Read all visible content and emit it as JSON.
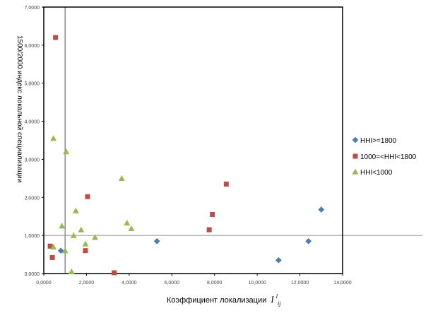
{
  "chart_data": {
    "type": "scatter",
    "xlabel": "Коэффициент локализации",
    "xlabel_math": "I",
    "xlabel_math_sup": "l",
    "xlabel_math_sub": "ij",
    "ylabel": "1500/2000 индекс локальной специализации",
    "xlim": [
      0,
      14
    ],
    "ylim": [
      0,
      7
    ],
    "x_ticks": [
      "0,0000",
      "2,0000",
      "4,0000",
      "6,0000",
      "8,0000",
      "10,0000",
      "12,0000",
      "14,0000"
    ],
    "y_ticks": [
      "0,0000",
      "1,0000",
      "2,0000",
      "3,0000",
      "4,0000",
      "5,0000",
      "6,0000",
      "7,0000"
    ],
    "ref_lines": {
      "x": 1.0,
      "y": 1.0
    },
    "series": [
      {
        "name": "HHI>=1800",
        "marker": "diamond",
        "color": "#4a7ebb",
        "points": [
          [
            0.8,
            0.6
          ],
          [
            5.3,
            0.85
          ],
          [
            11.0,
            0.35
          ],
          [
            12.4,
            0.85
          ],
          [
            13.0,
            1.68
          ]
        ]
      },
      {
        "name": "1000=<HHI<1800",
        "marker": "square",
        "color": "#be4b48",
        "points": [
          [
            0.3,
            0.72
          ],
          [
            0.4,
            0.42
          ],
          [
            0.55,
            6.2
          ],
          [
            1.95,
            0.6
          ],
          [
            2.05,
            2.02
          ],
          [
            3.3,
            0.02
          ],
          [
            7.75,
            1.15
          ],
          [
            7.9,
            1.55
          ],
          [
            8.55,
            2.35
          ]
        ]
      },
      {
        "name": "HHI<1000",
        "marker": "triangle",
        "color": "#98b954",
        "points": [
          [
            0.45,
            3.55
          ],
          [
            0.45,
            0.7
          ],
          [
            0.85,
            1.25
          ],
          [
            1.0,
            0.6
          ],
          [
            1.05,
            3.2
          ],
          [
            1.3,
            0.05
          ],
          [
            1.4,
            1.0
          ],
          [
            1.5,
            1.65
          ],
          [
            1.75,
            1.15
          ],
          [
            1.95,
            0.78
          ],
          [
            2.4,
            0.95
          ],
          [
            3.65,
            2.5
          ],
          [
            3.9,
            1.33
          ],
          [
            4.1,
            1.18
          ]
        ]
      }
    ],
    "legend_position": "right"
  }
}
